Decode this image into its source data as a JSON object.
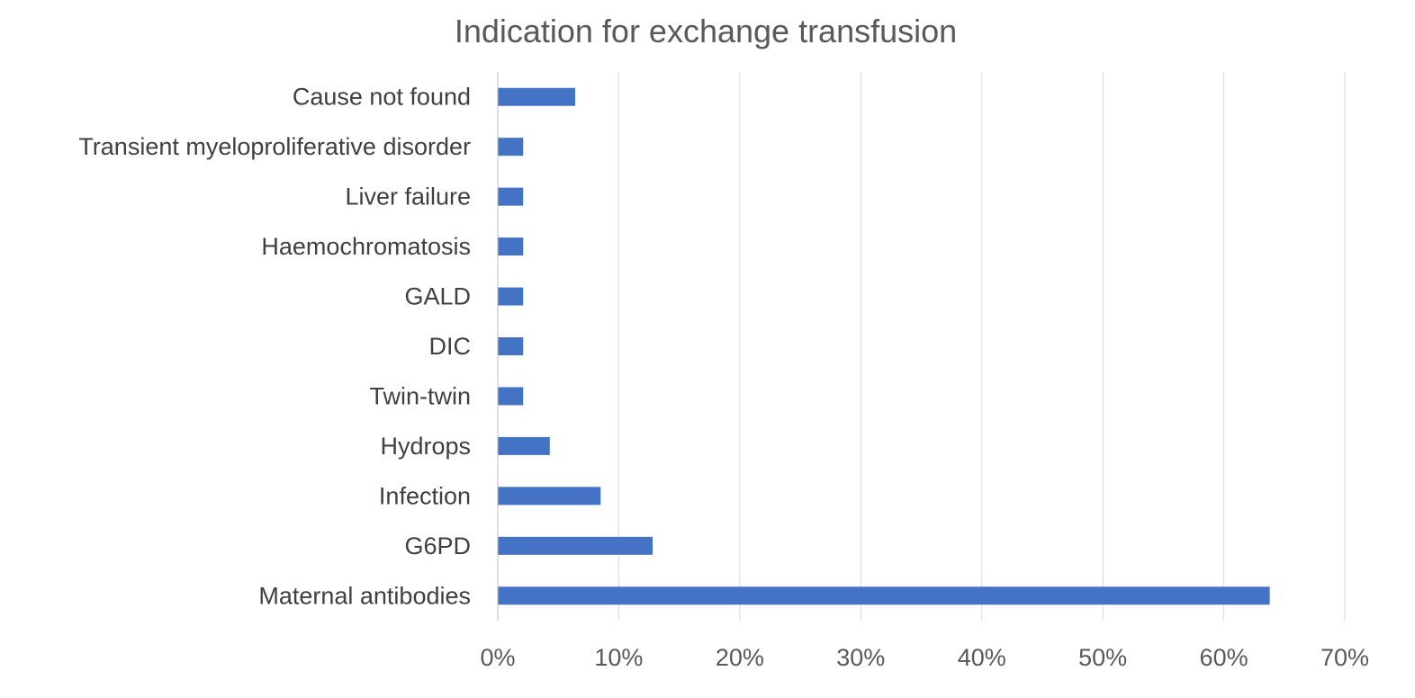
{
  "chart_data": {
    "type": "bar",
    "orientation": "horizontal",
    "title": "Indication for exchange transfusion",
    "xlabel": "",
    "ylabel": "",
    "categories": [
      "Maternal antibodies",
      "G6PD",
      "Infection",
      "Hydrops",
      "Twin-twin",
      "DIC",
      "GALD",
      "Haemochromatosis",
      "Liver failure",
      "Transient myeloproliferative disorder",
      "Cause not found"
    ],
    "values": [
      63.8,
      12.8,
      8.5,
      4.3,
      2.1,
      2.1,
      2.1,
      2.1,
      2.1,
      2.1,
      6.4
    ],
    "unit": "%",
    "xlim": [
      0,
      70
    ],
    "ticks": [
      0,
      10,
      20,
      30,
      40,
      50,
      60,
      70
    ],
    "tick_labels": [
      "0%",
      "10%",
      "20%",
      "30%",
      "40%",
      "50%",
      "60%",
      "70%"
    ],
    "bar_color": "#4472C4",
    "grid": true,
    "legend": "none"
  }
}
